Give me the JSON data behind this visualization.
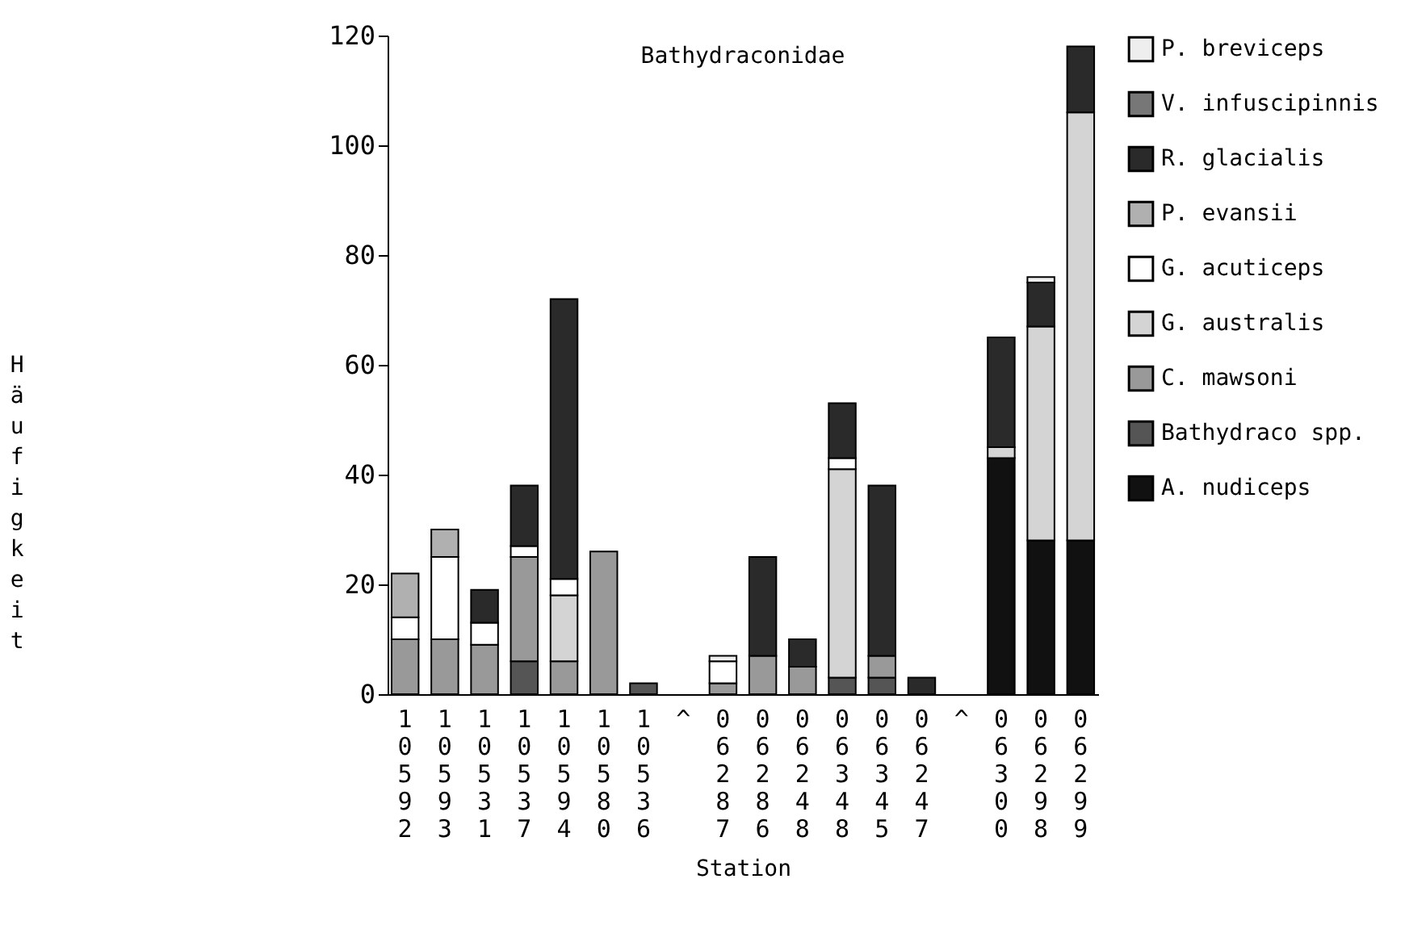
{
  "chart_data": {
    "type": "bar",
    "title": "Bathydraconidae",
    "xlabel": "Station",
    "ylabel": "Häufigkeit",
    "categories": [
      "10592",
      "10593",
      "10531",
      "10537",
      "10594",
      "10580",
      "10536",
      "^",
      "06287",
      "06286",
      "06248",
      "06348",
      "06345",
      "06247",
      "^",
      "06300",
      "06298",
      "06299"
    ],
    "stacked": true,
    "ylim": [
      0,
      120
    ],
    "yticks": [
      0,
      20,
      40,
      60,
      80,
      100,
      120
    ],
    "grid": false,
    "legend": "right",
    "series": [
      {
        "name": "A. nudiceps",
        "color": "#111111",
        "values": [
          null,
          null,
          null,
          null,
          null,
          null,
          null,
          null,
          null,
          null,
          null,
          null,
          null,
          null,
          null,
          43,
          28,
          28
        ]
      },
      {
        "name": "Bathydraco spp.",
        "color": "#555555",
        "values": [
          null,
          null,
          null,
          6,
          null,
          null,
          2,
          null,
          null,
          null,
          null,
          3,
          3,
          null,
          null,
          null,
          null,
          null
        ]
      },
      {
        "name": "C. mawsoni",
        "color": "#999999",
        "values": [
          10,
          10,
          9,
          19,
          6,
          26,
          null,
          null,
          2,
          7,
          5,
          null,
          4,
          null,
          null,
          null,
          null,
          null
        ]
      },
      {
        "name": "G. australis",
        "color": "#d4d4d4",
        "values": [
          null,
          null,
          null,
          null,
          12,
          null,
          null,
          null,
          null,
          null,
          null,
          38,
          null,
          null,
          null,
          2,
          39,
          78
        ]
      },
      {
        "name": "G. acuticeps",
        "color": "#ffffff",
        "values": [
          4,
          15,
          4,
          2,
          3,
          null,
          null,
          null,
          4,
          null,
          null,
          2,
          null,
          null,
          null,
          null,
          null,
          null
        ]
      },
      {
        "name": "P. evansii",
        "color": "#b0b0b0",
        "values": [
          8,
          5,
          null,
          null,
          null,
          null,
          null,
          null,
          null,
          null,
          null,
          null,
          null,
          null,
          null,
          null,
          null,
          null
        ]
      },
      {
        "name": "R. glacialis",
        "color": "#2a2a2a",
        "values": [
          null,
          null,
          6,
          11,
          51,
          null,
          null,
          null,
          null,
          18,
          5,
          10,
          31,
          3,
          null,
          20,
          8,
          12
        ]
      },
      {
        "name": "V. infuscipinnis",
        "color": "#777777",
        "values": [
          null,
          null,
          null,
          null,
          null,
          null,
          null,
          null,
          null,
          null,
          null,
          null,
          null,
          null,
          null,
          null,
          null,
          null
        ]
      },
      {
        "name": "P. breviceps",
        "color": "#eeeeee",
        "values": [
          null,
          null,
          null,
          null,
          null,
          null,
          null,
          null,
          1,
          null,
          null,
          null,
          null,
          null,
          null,
          null,
          1,
          null
        ]
      }
    ]
  }
}
